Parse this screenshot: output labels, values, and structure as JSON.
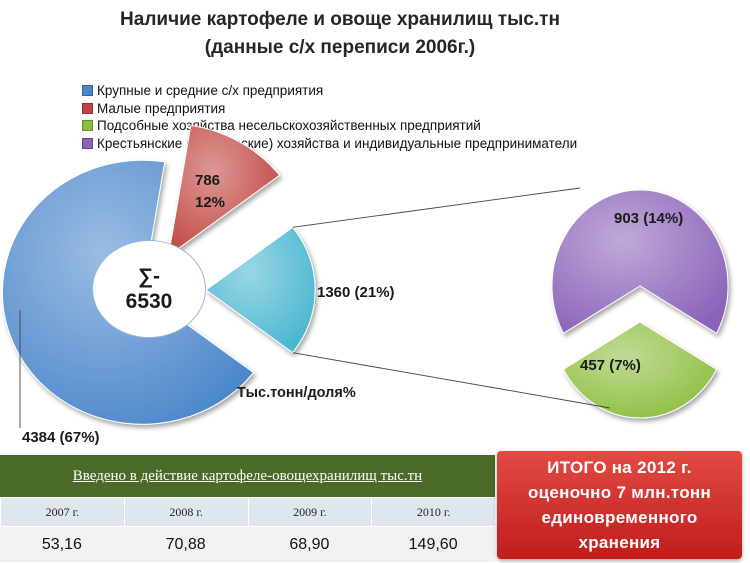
{
  "title": {
    "line1": "Наличие картофеле и овоще хранилищ тыс.тн",
    "line2": "(данные с/х переписи 2006г.)"
  },
  "chart_data": {
    "type": "pie",
    "title": "Наличие картофеле и овоще хранилищ тыс.тн (данные с/х переписи 2006г.)",
    "unit_label": "Тыс.тонн/доля%",
    "total_label": [
      "∑-",
      "6530"
    ],
    "total": 6530,
    "legend_position": "top",
    "series": [
      {
        "name": "Крупные и средние с/х предприятия",
        "value": 4384,
        "percent": 67,
        "label": "4384 (67%)",
        "color": "#4a86cb"
      },
      {
        "name": "Малые предприятия",
        "value": 786,
        "percent": 12,
        "label_lines": [
          "786",
          "12%"
        ],
        "color": "#c0433f"
      },
      {
        "name": "Подсобные хозяйства несельскохозяйственных предприятий",
        "value": 457,
        "percent": 7,
        "label": "457 (7%)",
        "color": "#8cbd3e"
      },
      {
        "name": "Крестьянские (фермерские) хозяйства и индивидуальные предприниматели",
        "value": 903,
        "percent": 14,
        "label": "903 (14%)",
        "color": "#8a62b8"
      }
    ],
    "aggregate_slice": {
      "value": 1360,
      "percent": 21,
      "label": "1360 (21%)",
      "color": "#47b5cf"
    }
  },
  "table": {
    "header": "Введено в действие картофеле-овощехранилищ тыс.тн",
    "years": [
      "2007 г.",
      "2008 г.",
      "2009 г.",
      "2010 г."
    ],
    "values": [
      "53,16",
      "70,88",
      "68,90",
      "149,60"
    ],
    "header_color": "#4a6a27"
  },
  "total_box": {
    "lines": [
      "ИТОГО на 2012 г.",
      "оценочно 7 млн.тонн",
      "единовременного",
      "хранения"
    ],
    "color": "#d12f2a"
  }
}
